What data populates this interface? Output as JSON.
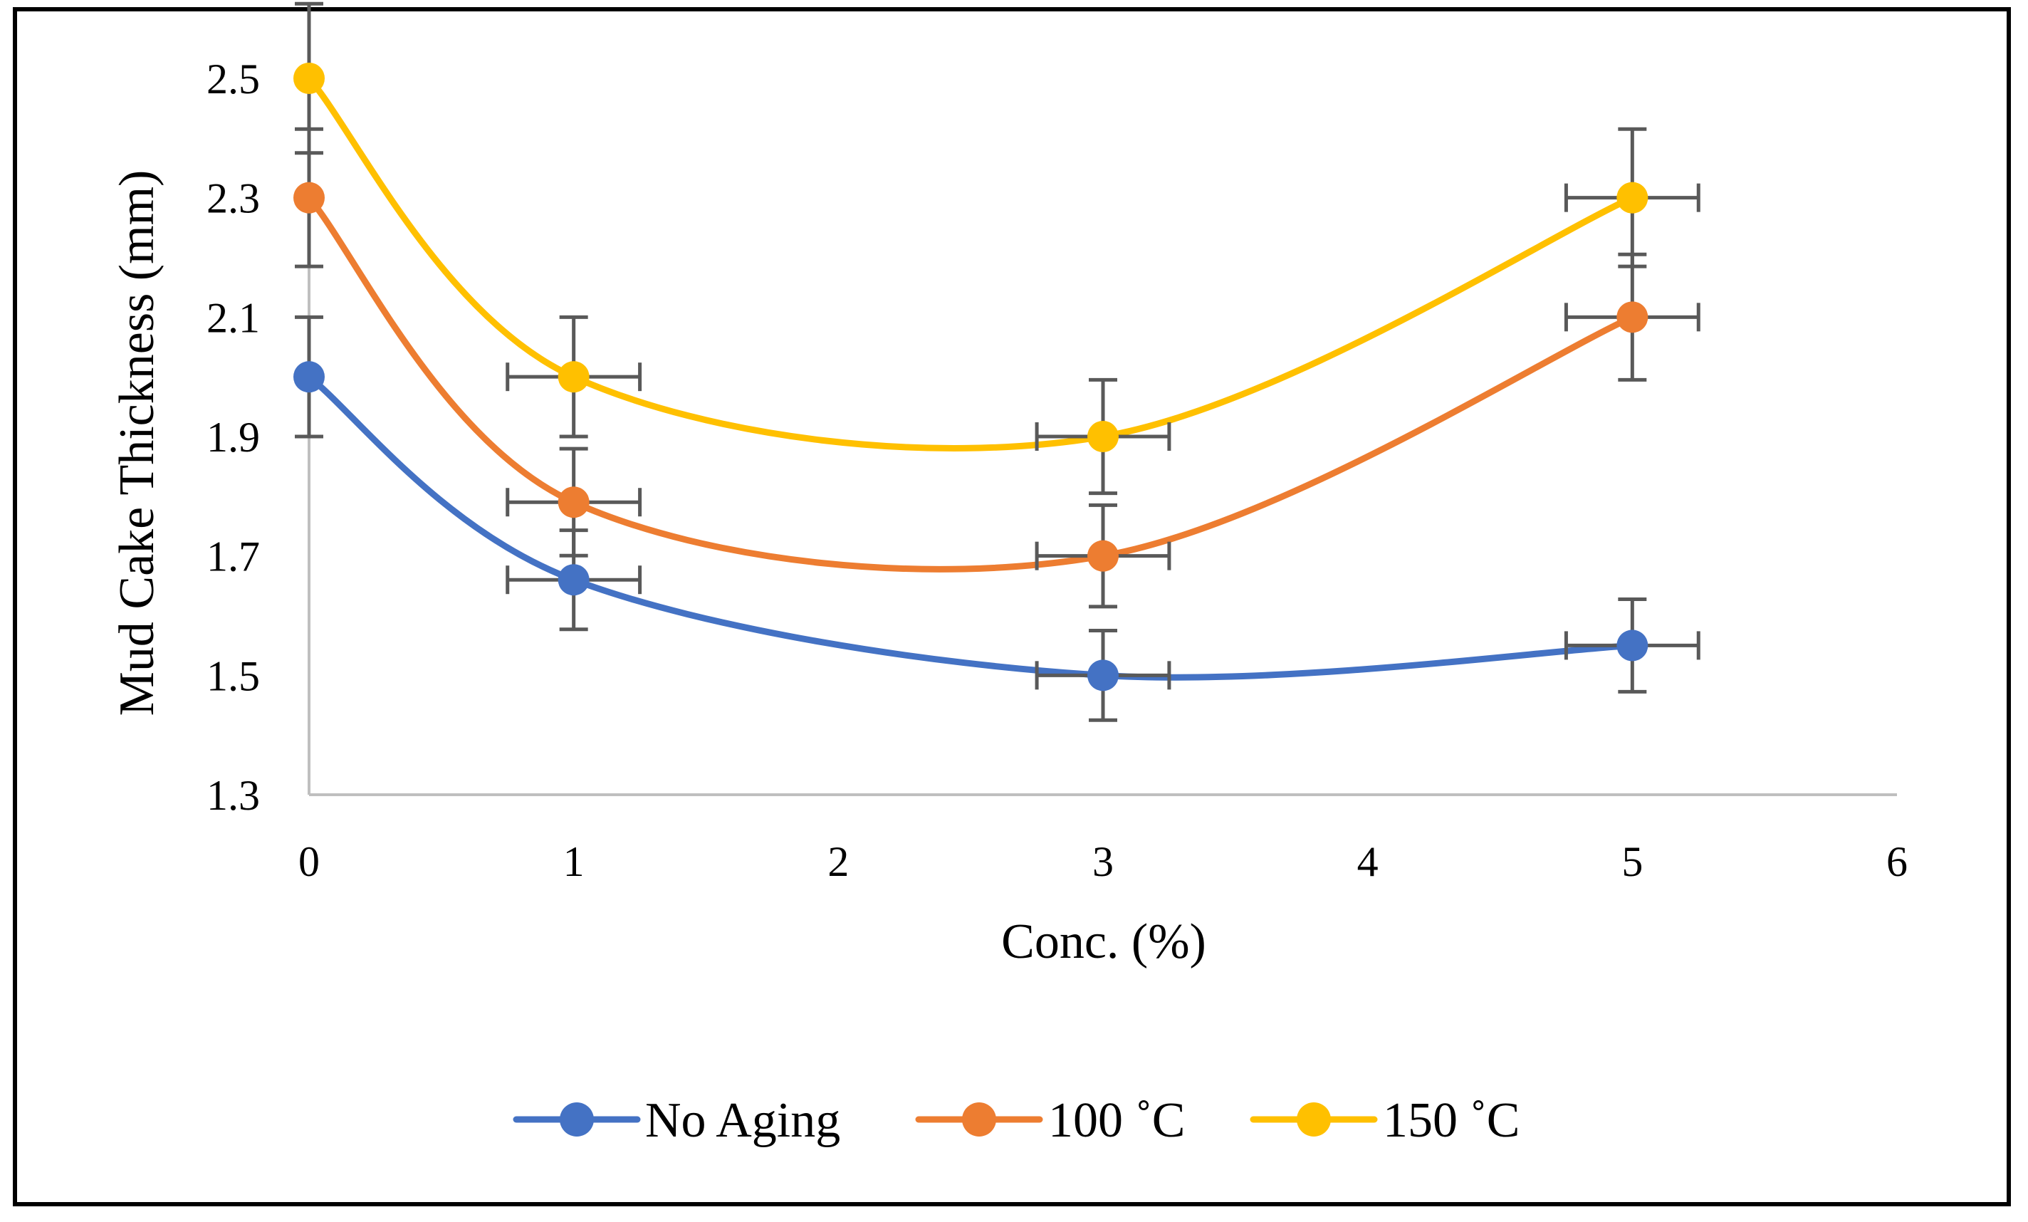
{
  "chart_data": {
    "type": "line",
    "title": "",
    "xlabel": "Conc. (%)",
    "ylabel": "Mud Cake Thickness (mm)",
    "xlim": [
      0,
      6
    ],
    "ylim": [
      1.3,
      2.5
    ],
    "x_ticks": [
      "0",
      "1",
      "2",
      "3",
      "4",
      "5",
      "6"
    ],
    "y_ticks": [
      "1.3",
      "1.5",
      "1.7",
      "1.9",
      "2.1",
      "2.3",
      "2.5"
    ],
    "grid": false,
    "smooth": true,
    "legend_position": "bottom",
    "error_bars": {
      "x_error": 0.25,
      "y_relative": 0.05
    },
    "x": [
      0,
      1,
      3,
      5
    ],
    "series": [
      {
        "name": "No Aging",
        "color": "#4472C4",
        "values": [
          2.0,
          1.66,
          1.5,
          1.55
        ]
      },
      {
        "name": "100 ˚C",
        "color": "#ED7D31",
        "values": [
          2.3,
          1.79,
          1.7,
          2.1
        ]
      },
      {
        "name": "150 ˚C",
        "color": "#FFC000",
        "values": [
          2.5,
          2.0,
          1.9,
          2.3
        ]
      }
    ]
  }
}
